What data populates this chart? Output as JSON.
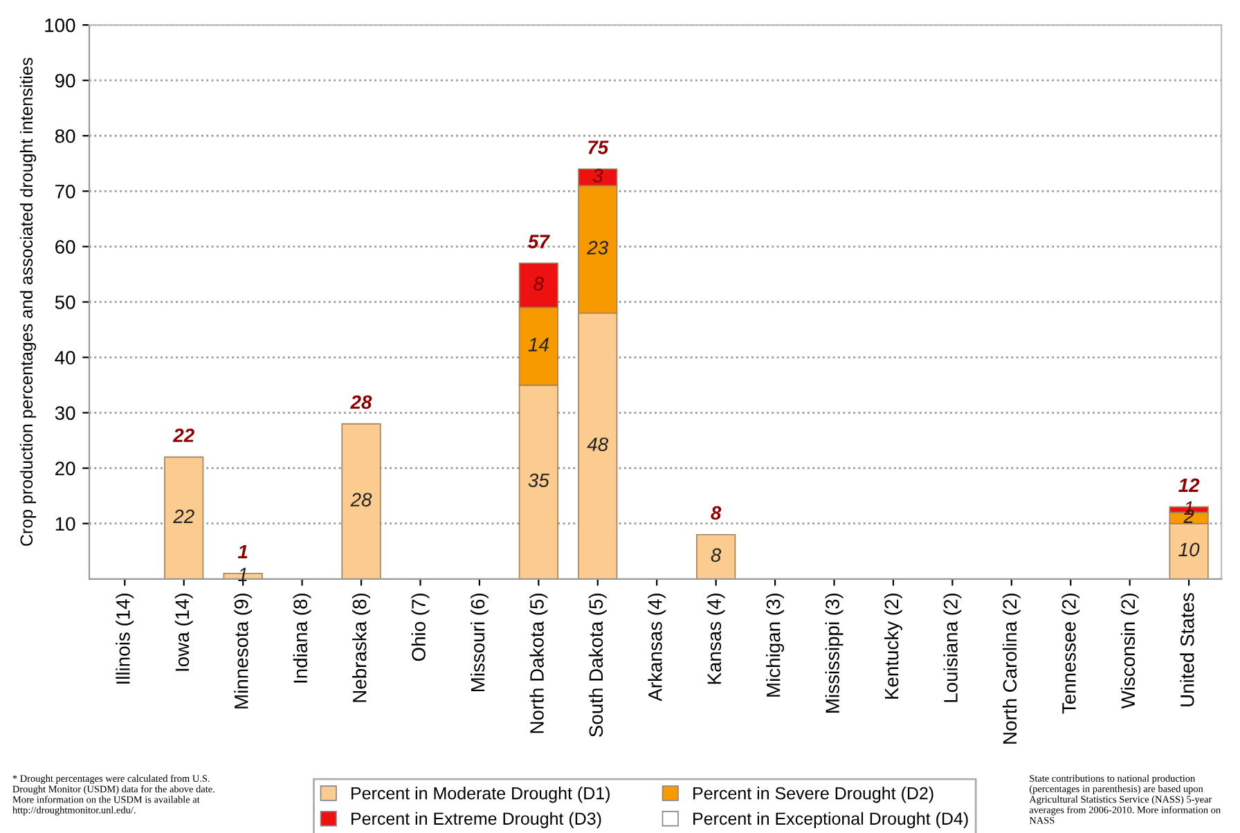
{
  "chart_data": {
    "type": "bar",
    "stacked": true,
    "ylabel": "Crop production percentages and associated drought intensities",
    "categories": [
      "Illinois (14)",
      "Iowa (14)",
      "Minnesota (9)",
      "Indiana (8)",
      "Nebraska (8)",
      "Ohio (7)",
      "Missouri (6)",
      "North Dakota (5)",
      "South Dakota (5)",
      "Arkansas (4)",
      "Kansas (4)",
      "Michigan (3)",
      "Mississippi (3)",
      "Kentucky (2)",
      "Louisiana (2)",
      "North Carolina (2)",
      "Tennessee (2)",
      "Wisconsin (2)",
      "United States"
    ],
    "series": [
      {
        "name": "Percent in Moderate Drought (D1)",
        "color": "#fbcb8f",
        "values": [
          null,
          22,
          1,
          null,
          28,
          null,
          null,
          35,
          48,
          null,
          8,
          null,
          null,
          null,
          null,
          null,
          null,
          null,
          10
        ]
      },
      {
        "name": "Percent in Severe Drought (D2)",
        "color": "#f79a00",
        "values": [
          null,
          null,
          null,
          null,
          null,
          null,
          null,
          14,
          23,
          null,
          null,
          null,
          null,
          null,
          null,
          null,
          null,
          null,
          2
        ]
      },
      {
        "name": "Percent in Extreme Drought (D3)",
        "color": "#ee1111",
        "values": [
          null,
          null,
          null,
          null,
          null,
          null,
          null,
          8,
          3,
          null,
          null,
          null,
          null,
          null,
          null,
          null,
          null,
          null,
          1
        ]
      },
      {
        "name": "Percent in Exceptional Drought (D4)",
        "color": "#ffffff",
        "values": [
          null,
          null,
          null,
          null,
          null,
          null,
          null,
          null,
          null,
          null,
          null,
          null,
          null,
          null,
          null,
          null,
          null,
          null,
          null
        ]
      }
    ],
    "totals": [
      null,
      "22",
      "1",
      null,
      "28",
      null,
      null,
      "57",
      "75",
      null,
      "8",
      null,
      null,
      null,
      null,
      null,
      null,
      null,
      "12"
    ],
    "data_labels": true,
    "ylim": [
      0,
      100
    ],
    "yticks": [
      10,
      20,
      30,
      40,
      50,
      60,
      70,
      80,
      90,
      100
    ],
    "grid": "y",
    "legend": "bottom",
    "annotations": [
      "* Drought percentages were calculated from U.S. Drought Monitor (USDM) data for the above date. More information on the USDM is available at http://droughtmonitor.unl.edu/.",
      "State contributions to national production (percentages in parenthesis) are based upon Agricultural Statistics Service (NASS) 5-year averages from 2006-2010. More information on NASS"
    ]
  }
}
